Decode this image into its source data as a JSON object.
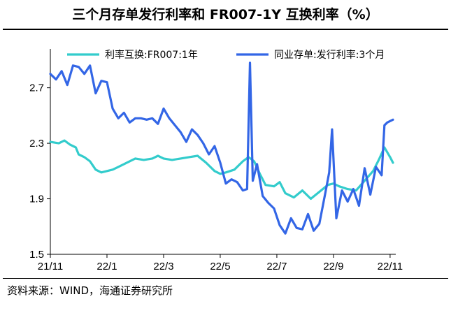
{
  "title": "三个月存单发行利率和 FR007-1Y 互换利率（%）",
  "source": "资料来源：WIND，海通证券研究所",
  "chart_data": {
    "type": "line",
    "ylim": [
      1.5,
      2.98
    ],
    "yticks": [
      "2.7",
      "2.3",
      "1.9",
      "1.5"
    ],
    "ytick_values": [
      2.7,
      2.3,
      1.9,
      1.5
    ],
    "xlim": [
      0,
      12.2
    ],
    "xticks": [
      "21/11",
      "22/1",
      "22/3",
      "22/5",
      "22/7",
      "22/9",
      "22/11"
    ],
    "xtick_values": [
      0,
      2,
      4,
      6,
      8,
      10,
      12
    ],
    "legend_position": "top",
    "series": [
      {
        "name": "利率互换:FR007:1年",
        "color": "#33CCCC",
        "x": [
          0,
          0.3,
          0.5,
          0.7,
          0.9,
          1.0,
          1.2,
          1.4,
          1.6,
          1.8,
          2.0,
          2.2,
          2.4,
          2.7,
          3.0,
          3.3,
          3.6,
          3.8,
          4.0,
          4.3,
          4.6,
          4.9,
          5.2,
          5.5,
          5.8,
          6.0,
          6.2,
          6.5,
          6.8,
          7.0,
          7.2,
          7.4,
          7.6,
          7.9,
          8.1,
          8.3,
          8.6,
          8.9,
          9.2,
          9.5,
          9.8,
          10.0,
          10.2,
          10.5,
          10.8,
          11.1,
          11.4,
          11.6,
          11.8,
          12.0,
          12.1
        ],
        "values": [
          2.31,
          2.3,
          2.32,
          2.29,
          2.27,
          2.22,
          2.2,
          2.17,
          2.11,
          2.09,
          2.1,
          2.11,
          2.13,
          2.16,
          2.19,
          2.18,
          2.19,
          2.21,
          2.19,
          2.18,
          2.19,
          2.2,
          2.21,
          2.16,
          2.1,
          2.08,
          2.09,
          2.11,
          2.17,
          2.2,
          2.17,
          2.08,
          2.0,
          1.99,
          2.02,
          1.94,
          1.91,
          1.96,
          1.9,
          1.95,
          2.0,
          2.01,
          1.99,
          1.97,
          1.96,
          2.03,
          2.1,
          2.18,
          2.27,
          2.2,
          2.16
        ]
      },
      {
        "name": "同业存单:发行利率:3个月",
        "color": "#3366E6",
        "x": [
          0,
          0.2,
          0.4,
          0.6,
          0.8,
          1.0,
          1.2,
          1.4,
          1.6,
          1.8,
          2.0,
          2.2,
          2.4,
          2.6,
          2.8,
          3.0,
          3.2,
          3.4,
          3.6,
          3.8,
          4.0,
          4.2,
          4.4,
          4.6,
          4.8,
          5.0,
          5.2,
          5.4,
          5.6,
          5.8,
          6.0,
          6.2,
          6.4,
          6.6,
          6.8,
          6.95,
          7.05,
          7.15,
          7.3,
          7.5,
          7.7,
          7.9,
          8.1,
          8.3,
          8.5,
          8.7,
          8.9,
          9.1,
          9.3,
          9.5,
          9.7,
          9.85,
          9.95,
          10.1,
          10.3,
          10.5,
          10.7,
          10.9,
          11.1,
          11.3,
          11.5,
          11.7,
          11.8,
          11.9,
          12.0,
          12.1
        ],
        "values": [
          2.8,
          2.76,
          2.82,
          2.72,
          2.86,
          2.85,
          2.8,
          2.86,
          2.66,
          2.75,
          2.74,
          2.55,
          2.48,
          2.52,
          2.45,
          2.48,
          2.48,
          2.47,
          2.48,
          2.44,
          2.55,
          2.48,
          2.43,
          2.38,
          2.31,
          2.4,
          2.36,
          2.3,
          2.22,
          2.28,
          2.16,
          2.01,
          2.04,
          2.02,
          1.96,
          1.97,
          2.88,
          2.03,
          2.15,
          1.92,
          1.87,
          1.83,
          1.71,
          1.65,
          1.76,
          1.69,
          1.68,
          1.79,
          1.67,
          1.72,
          1.93,
          2.09,
          2.4,
          1.76,
          1.96,
          1.88,
          1.97,
          1.85,
          2.12,
          1.93,
          2.13,
          2.07,
          2.43,
          2.45,
          2.46,
          2.47
        ]
      }
    ]
  }
}
